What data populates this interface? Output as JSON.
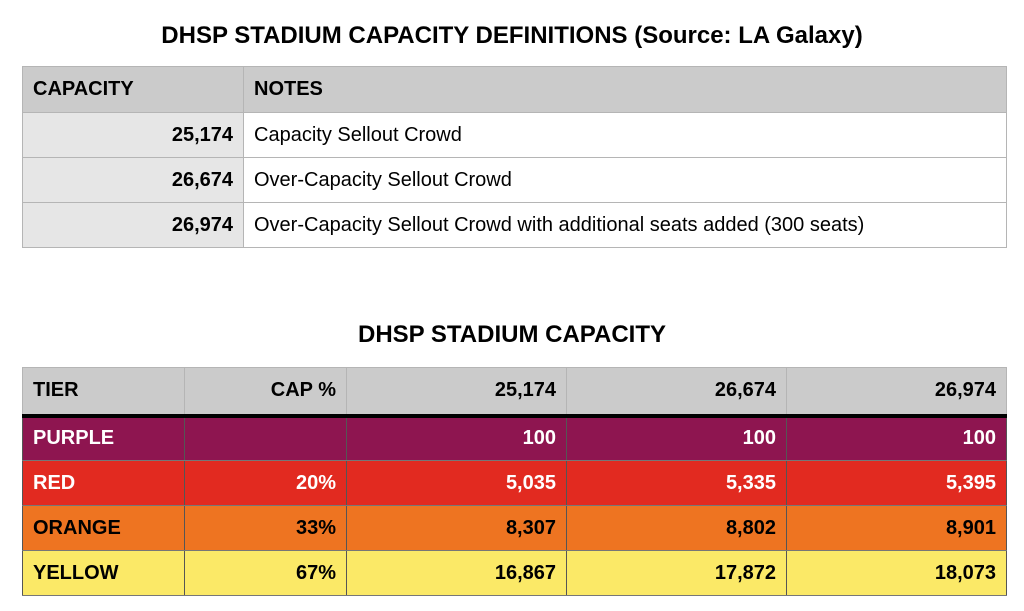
{
  "definitions": {
    "title": "DHSP STADIUM CAPACITY DEFINITIONS (Source: LA Galaxy)",
    "headers": {
      "capacity": "CAPACITY",
      "notes": "NOTES"
    },
    "rows": [
      {
        "capacity": "25,174",
        "notes": "Capacity Sellout Crowd"
      },
      {
        "capacity": "26,674",
        "notes": "Over-Capacity Sellout Crowd"
      },
      {
        "capacity": "26,974",
        "notes": "Over-Capacity Sellout Crowd with additional seats added (300 seats)"
      }
    ]
  },
  "capacity": {
    "title": "DHSP STADIUM CAPACITY",
    "headers": {
      "tier": "TIER",
      "cap_pct": "CAP %",
      "c1": "25,174",
      "c2": "26,674",
      "c3": "26,974"
    },
    "rows": [
      {
        "tier": "PURPLE",
        "cap_pct": "",
        "c1": "100",
        "c2": "100",
        "c3": "100",
        "color": "#8e1550"
      },
      {
        "tier": "RED",
        "cap_pct": "20%",
        "c1": "5,035",
        "c2": "5,335",
        "c3": "5,395",
        "color": "#e22a20"
      },
      {
        "tier": "ORANGE",
        "cap_pct": "33%",
        "c1": "8,307",
        "c2": "8,802",
        "c3": "8,901",
        "color": "#ee7421"
      },
      {
        "tier": "YELLOW",
        "cap_pct": "67%",
        "c1": "16,867",
        "c2": "17,872",
        "c3": "18,073",
        "color": "#fbe967"
      }
    ]
  }
}
